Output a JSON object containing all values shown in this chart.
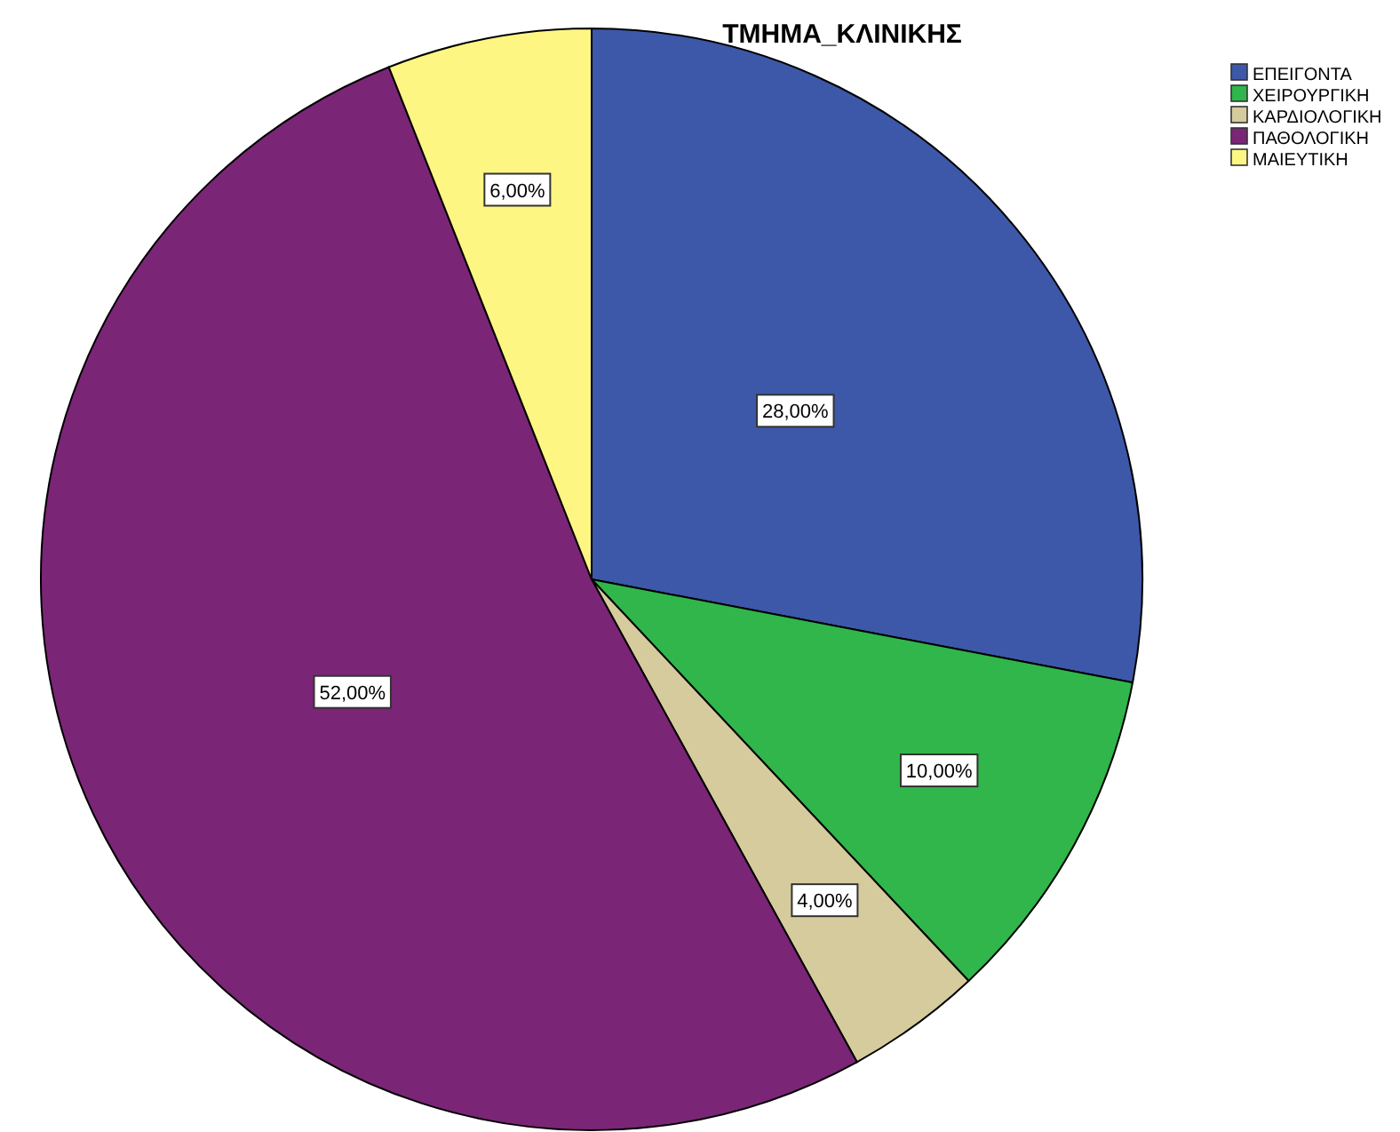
{
  "chart_data": {
    "type": "pie",
    "title": "ΤΜΗΜΑ_ΚΛΙΝΙΚΗΣ",
    "categories": [
      "ΕΠΕΙΓΟΝΤΑ",
      "ΧΕΙΡΟΥΡΓΙΚΗ",
      "ΚΑΡΔΙΟΛΟΓΙΚΗ",
      "ΠΑΘΟΛΟΓΙΚΗ",
      "ΜΑΙΕΥΤΙΚΗ"
    ],
    "values": [
      28,
      10,
      4,
      52,
      6
    ],
    "colors": [
      "#3d58a8",
      "#30b64b",
      "#d5cb9c",
      "#7b2577",
      "#fdf683"
    ],
    "value_labels": [
      "28,00%",
      "10,00%",
      "4,00%",
      "52,00%",
      "6,00%"
    ],
    "legend": "top right"
  }
}
